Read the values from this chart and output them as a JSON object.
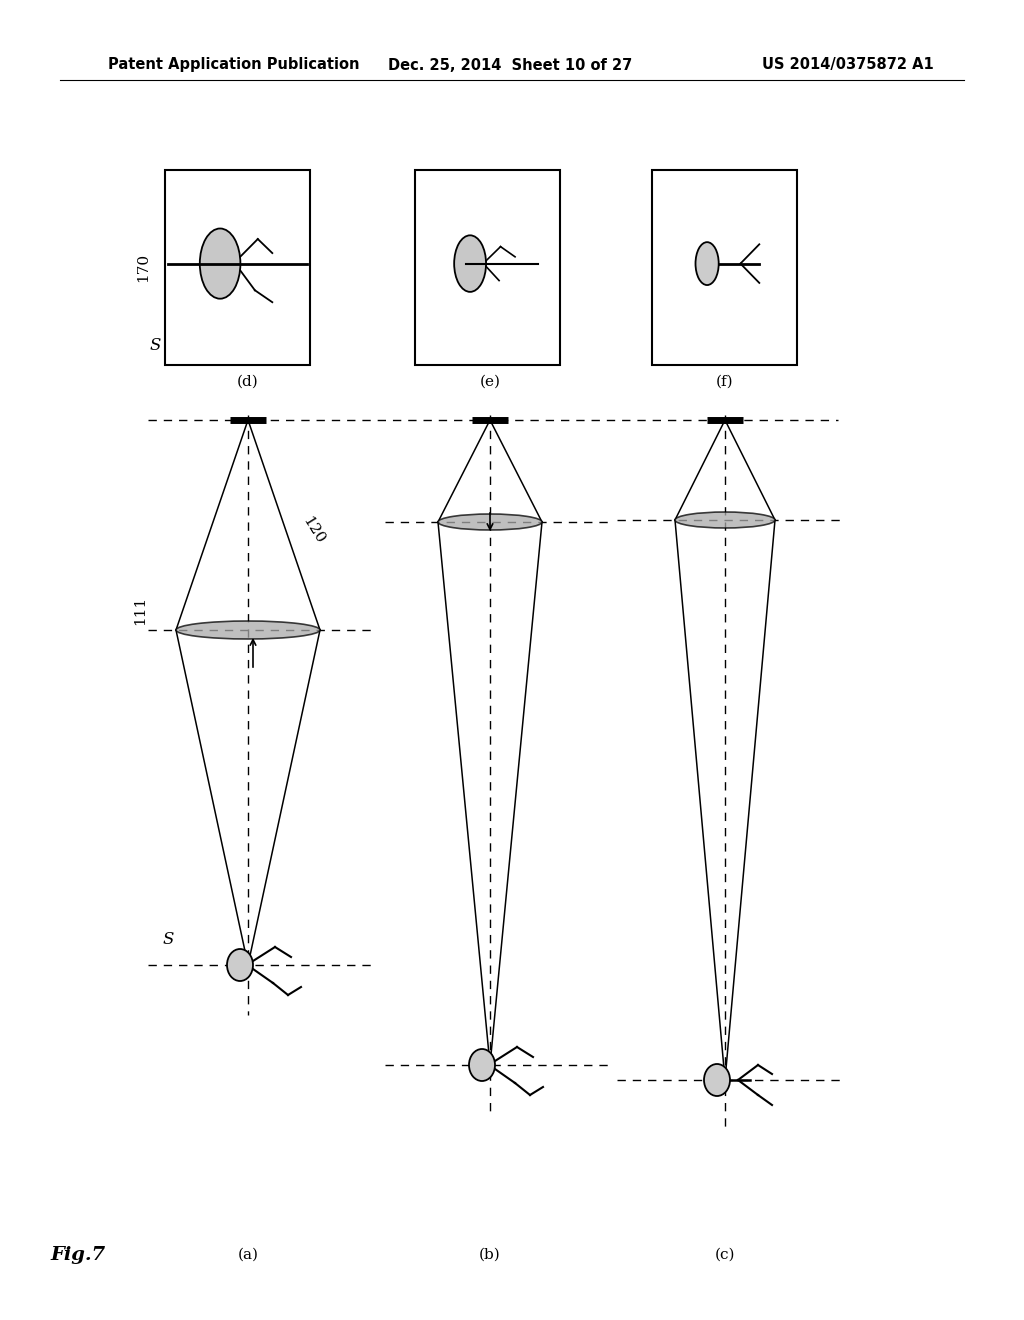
{
  "title_left": "Patent Application Publication",
  "title_center": "Dec. 25, 2014  Sheet 10 of 27",
  "title_right": "US 2014/0375872 A1",
  "fig_label": "Fig.7",
  "background": "#ffffff",
  "label_170": "170",
  "label_S_top": "S",
  "label_111": "111",
  "label_120": "120",
  "label_S_bottom": "S",
  "col_labels_top": [
    "(d)",
    "(e)",
    "(f)"
  ],
  "col_labels_bottom": [
    "(a)",
    "(b)",
    "(c)"
  ]
}
